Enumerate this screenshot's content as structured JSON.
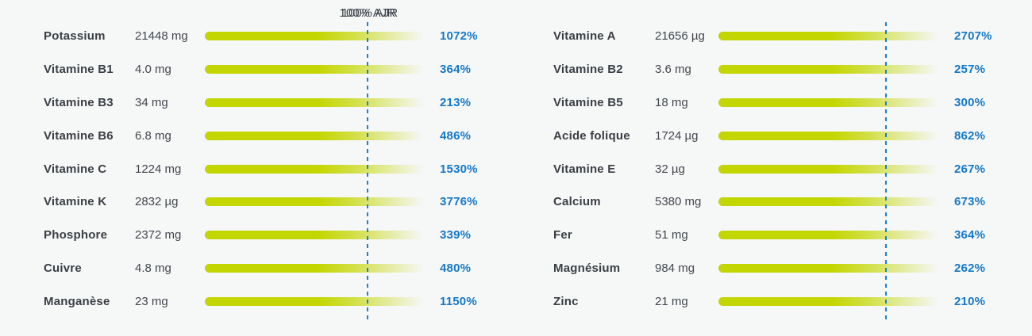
{
  "colors": {
    "background": "#f6f7f7",
    "bar": "#c3d600",
    "reference_line": "#1583d6",
    "percent_text": "#1479c8",
    "label_text": "#3a3e45",
    "amount_text": "#43474e"
  },
  "chart_data": {
    "type": "bar",
    "reference_line_label": "100% AJR",
    "reference_value_percent": 100,
    "legend_position": "top",
    "grid": false,
    "panels": [
      {
        "rows": [
          {
            "label": "Potassium",
            "amount": "21448 mg",
            "percent": "1072%",
            "percent_value": 1072
          },
          {
            "label": "Vitamine B1",
            "amount": "4.0 mg",
            "percent": "364%",
            "percent_value": 364
          },
          {
            "label": "Vitamine B3",
            "amount": "34 mg",
            "percent": "213%",
            "percent_value": 213
          },
          {
            "label": "Vitamine B6",
            "amount": "6.8 mg",
            "percent": "486%",
            "percent_value": 486
          },
          {
            "label": "Vitamine C",
            "amount": "1224 mg",
            "percent": "1530%",
            "percent_value": 1530
          },
          {
            "label": "Vitamine K",
            "amount": "2832 µg",
            "percent": "3776%",
            "percent_value": 3776
          },
          {
            "label": "Phosphore",
            "amount": "2372 mg",
            "percent": "339%",
            "percent_value": 339
          },
          {
            "label": "Cuivre",
            "amount": "4.8 mg",
            "percent": "480%",
            "percent_value": 480
          },
          {
            "label": "Manganèse",
            "amount": "23 mg",
            "percent": "1150%",
            "percent_value": 1150
          }
        ]
      },
      {
        "rows": [
          {
            "label": "Vitamine A",
            "amount": "21656 µg",
            "percent": "2707%",
            "percent_value": 2707
          },
          {
            "label": "Vitamine B2",
            "amount": "3.6 mg",
            "percent": "257%",
            "percent_value": 257
          },
          {
            "label": "Vitamine B5",
            "amount": "18 mg",
            "percent": "300%",
            "percent_value": 300
          },
          {
            "label": "Acide folique",
            "amount": "1724 µg",
            "percent": "862%",
            "percent_value": 862
          },
          {
            "label": "Vitamine E",
            "amount": "32 µg",
            "percent": "267%",
            "percent_value": 267
          },
          {
            "label": "Calcium",
            "amount": "5380 mg",
            "percent": "673%",
            "percent_value": 673
          },
          {
            "label": "Fer",
            "amount": "51 mg",
            "percent": "364%",
            "percent_value": 364
          },
          {
            "label": "Magnésium",
            "amount": "984 mg",
            "percent": "262%",
            "percent_value": 262
          },
          {
            "label": "Zinc",
            "amount": "21 mg",
            "percent": "210%",
            "percent_value": 210
          }
        ]
      }
    ]
  }
}
